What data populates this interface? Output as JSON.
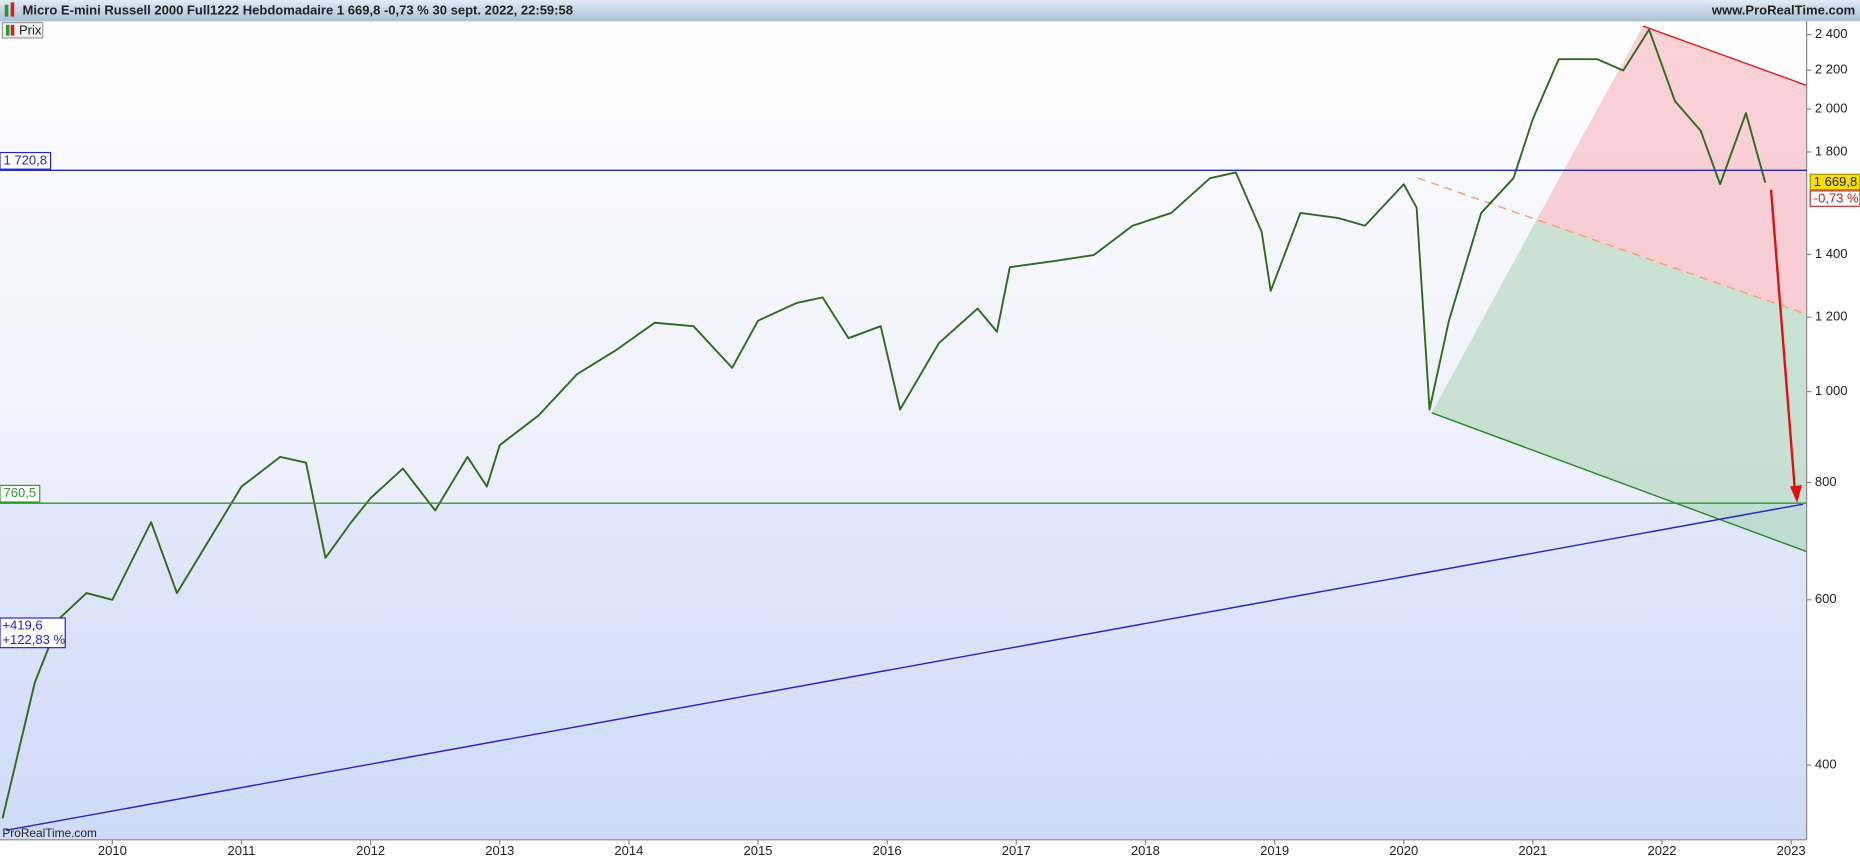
{
  "chart_data": {
    "type": "line",
    "title": "Micro E-mini Russell 2000 Full1222 Hebdomadaire 1 669,8 -0,73 % 30 sept. 2022, 22:59:58",
    "source": "www.ProRealTime.com",
    "watermark": "ProRealTime.com",
    "log_scale": true,
    "x": [
      2009.15,
      2009.4,
      2009.6,
      2009.8,
      2010.0,
      2010.3,
      2010.5,
      2010.75,
      2011.0,
      2011.3,
      2011.5,
      2011.65,
      2011.85,
      2012.0,
      2012.25,
      2012.5,
      2012.75,
      2012.9,
      2013.0,
      2013.3,
      2013.6,
      2013.9,
      2014.2,
      2014.5,
      2014.8,
      2015.0,
      2015.3,
      2015.5,
      2015.7,
      2015.95,
      2016.1,
      2016.4,
      2016.7,
      2016.85,
      2016.95,
      2017.3,
      2017.6,
      2017.9,
      2018.2,
      2018.5,
      2018.7,
      2018.9,
      2018.97,
      2019.2,
      2019.5,
      2019.7,
      2020.0,
      2020.1,
      2020.2,
      2020.35,
      2020.6,
      2020.85,
      2021.0,
      2021.2,
      2021.5,
      2021.7,
      2021.9,
      2022.1,
      2022.3,
      2022.45,
      2022.65,
      2022.8
    ],
    "series": [
      {
        "name": "Prix",
        "color": "#2f6b1e",
        "values": [
          351,
          490,
          575,
          610,
          600,
          726,
          610,
          695,
          792,
          852,
          840,
          665,
          726,
          770,
          828,
          747,
          852,
          792,
          877,
          943,
          1044,
          1107,
          1184,
          1174,
          1060,
          1190,
          1243,
          1260,
          1140,
          1174,
          957,
          1126,
          1226,
          1158,
          1357,
          1378,
          1398,
          1502,
          1550,
          1688,
          1712,
          1480,
          1280,
          1550,
          1530,
          1502,
          1663,
          1570,
          957,
          1190,
          1550,
          1688,
          1952,
          2260,
          2260,
          2198,
          2430,
          2040,
          1896,
          1663,
          1980,
          1669.8
        ]
      }
    ],
    "xlim": [
      2009.13,
      2023.12
    ],
    "xticks": [
      2010,
      2011,
      2012,
      2013,
      2014,
      2015,
      2016,
      2017,
      2018,
      2019,
      2020,
      2021,
      2022,
      2023
    ],
    "ylim": [
      333,
      2480
    ],
    "yticks": [
      {
        "value": 2400,
        "label": "2 400"
      },
      {
        "value": 2200,
        "label": "2 200"
      },
      {
        "value": 2000,
        "label": "2 000"
      },
      {
        "value": 1800,
        "label": "1 800"
      },
      {
        "value": 1400,
        "label": "1 400"
      },
      {
        "value": 1200,
        "label": "1 200"
      },
      {
        "value": 1000,
        "label": "1 000"
      },
      800,
      600,
      400
    ],
    "hlines": [
      {
        "value": 1720.8,
        "label": "1 720,8",
        "color": "#2424c0"
      },
      {
        "value": 760.5,
        "label": "760,5",
        "color": "#2f9a2f"
      }
    ],
    "price_badge": {
      "value": 1669.8,
      "label": "1 669,8",
      "change": "-0,73 %"
    },
    "annotation": {
      "lines": [
        "+419,6",
        "+122,83 %"
      ]
    }
  }
}
